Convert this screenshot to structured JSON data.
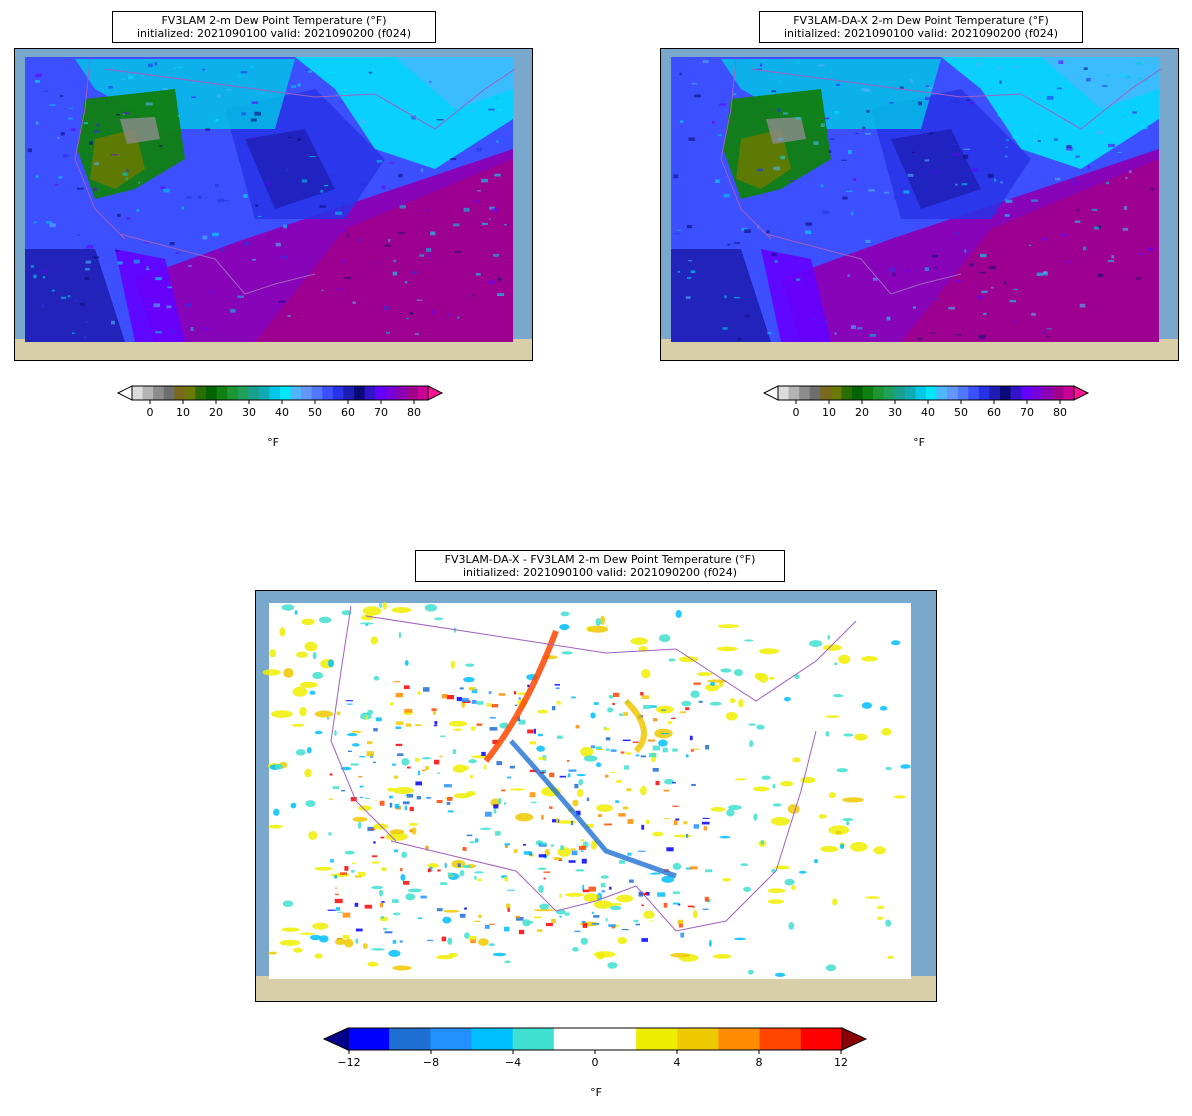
{
  "panels": [
    {
      "id": "fv3lam",
      "title_line1": "FV3LAM 2-m Dew Point Temperature (°F)",
      "title_line2": "initialized: 2021090100 valid: 2021090200 (f024)",
      "colorbar": {
        "ticks": [
          "0",
          "10",
          "20",
          "30",
          "40",
          "50",
          "60",
          "70",
          "80"
        ],
        "unit": "°F"
      }
    },
    {
      "id": "fv3lam-da-x",
      "title_line1": "FV3LAM-DA-X 2-m Dew Point Temperature (°F)",
      "title_line2": "initialized: 2021090100 valid: 2021090200 (f024)",
      "colorbar": {
        "ticks": [
          "0",
          "10",
          "20",
          "30",
          "40",
          "50",
          "60",
          "70",
          "80"
        ],
        "unit": "°F"
      }
    },
    {
      "id": "difference",
      "title_line1": "FV3LAM-DA-X - FV3LAM 2-m Dew Point Temperature (°F)",
      "title_line2": "initialized: 2021090100 valid: 2021090200 (f024)",
      "colorbar": {
        "ticks": [
          "−12",
          "−8",
          "−4",
          "0",
          "4",
          "8",
          "12"
        ],
        "unit": "°F"
      }
    }
  ],
  "colormaps": {
    "dewpoint": [
      "#ffffff",
      "#dcdcdc",
      "#b4b4b4",
      "#8c8c8c",
      "#6e6e6e",
      "#7a6a1e",
      "#6b7a00",
      "#2a6e00",
      "#006400",
      "#108010",
      "#1e9632",
      "#20a05a",
      "#18a08c",
      "#10aab4",
      "#00c8e6",
      "#00e6ff",
      "#50b4ff",
      "#6496ff",
      "#5078ff",
      "#3c50ff",
      "#2832e6",
      "#1e1eb4",
      "#0a0a78",
      "#3214c8",
      "#6400ff",
      "#7800dc",
      "#8c00b4",
      "#a0008c",
      "#c80096",
      "#ff1496"
    ],
    "difference": [
      "#00008b",
      "#0000ff",
      "#1e6fd2",
      "#2390ff",
      "#00bfff",
      "#40e0d0",
      "#ffffff",
      "#ffffff",
      "#eeee00",
      "#eec900",
      "#ff8c00",
      "#ff4500",
      "#ff0000",
      "#8b0000"
    ]
  },
  "colors": {
    "ocean": "#7aa7cc",
    "land_bg": "#d8cfa8",
    "border": "#a060c0"
  }
}
